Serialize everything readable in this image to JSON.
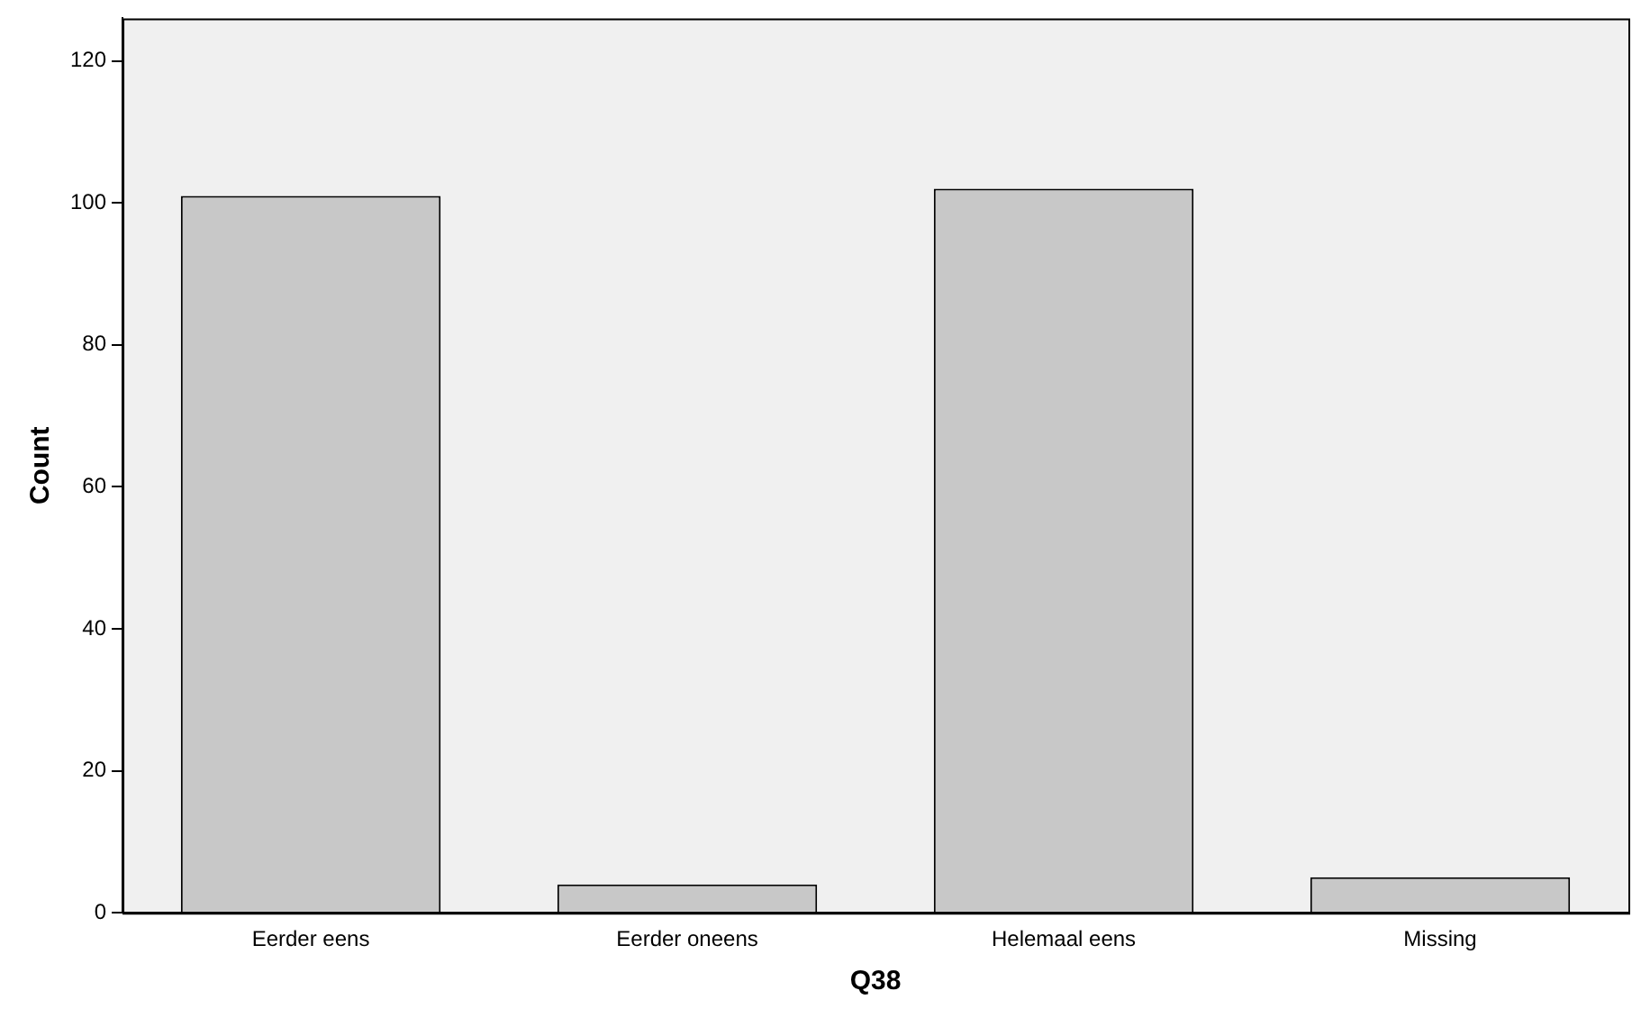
{
  "chart_data": {
    "type": "bar",
    "xlabel": "Q38",
    "ylabel": "Count",
    "categories": [
      "Eerder eens",
      "Eerder oneens",
      "Helemaal eens",
      "Missing"
    ],
    "values": [
      101,
      4,
      102,
      5
    ],
    "color": "#c8c8c8",
    "ylim": [
      0,
      126
    ],
    "yticks": [
      0,
      20,
      40,
      60,
      80,
      100,
      120
    ],
    "grid": false,
    "legend": false
  }
}
